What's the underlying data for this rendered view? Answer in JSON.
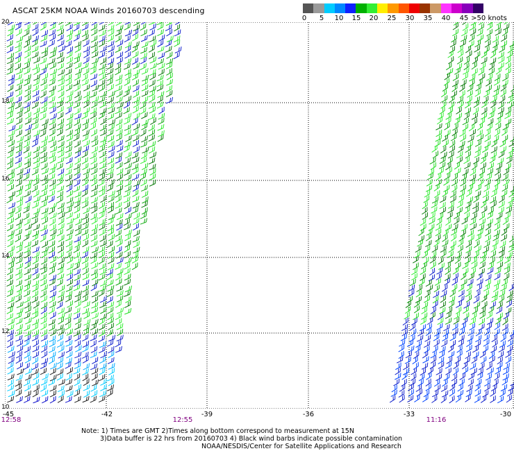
{
  "title": "ASCAT 25KM NOAA Winds 20160703 descending",
  "legend": {
    "colors": [
      "#555555",
      "#9a9a9a",
      "#00ccff",
      "#0088ff",
      "#1020ff",
      "#00b000",
      "#33ee33",
      "#ffee00",
      "#ff9900",
      "#ff5500",
      "#ee0000",
      "#993300",
      "#cc9966",
      "#ff33ff",
      "#cc00cc",
      "#8800bb",
      "#330066"
    ],
    "labels": [
      "0",
      "5",
      "10",
      "15",
      "20",
      "25",
      "30",
      "35",
      "40",
      "45",
      ">50 knots"
    ]
  },
  "y_labels": [
    "20",
    "18",
    "16",
    "14",
    "12",
    "10"
  ],
  "x_labels": [
    "-45",
    "-42",
    "-39",
    "-36",
    "-33",
    "-30"
  ],
  "times": [
    "12:58",
    "12:55",
    "11:16"
  ],
  "notes": [
    "Note: 1) Times are GMT 2)Times along bottom correspond to measurement at 15N",
    "3)Data buffer is 22 hrs from 20160703 4) Black wind barbs indicate possible contamination",
    "NOAA/NESDIS/Center for Satellite Applications and Research"
  ]
}
